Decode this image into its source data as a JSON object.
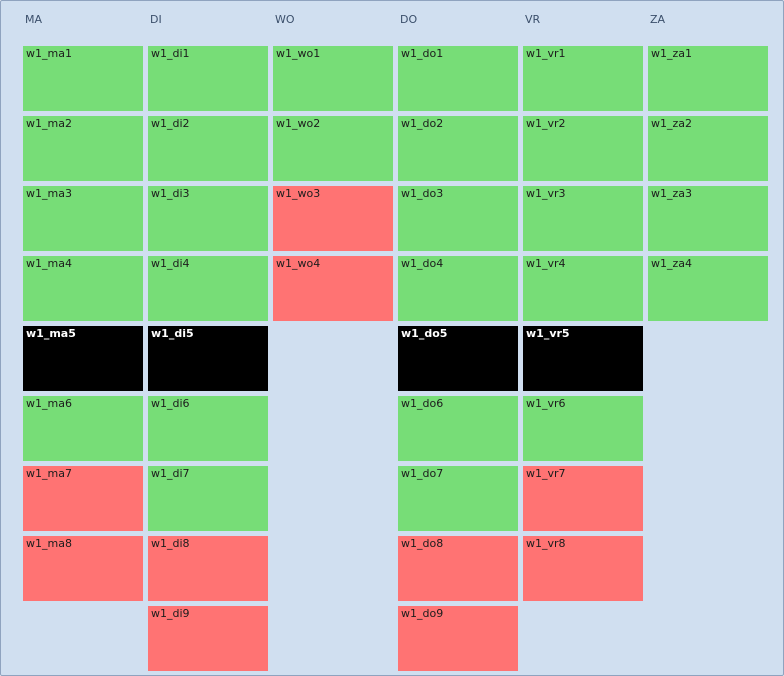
{
  "colors": {
    "green": "#77dd77",
    "red": "#ff7373",
    "black": "#000000"
  },
  "columns": [
    {
      "header": "MA",
      "cells": [
        {
          "label": "w1_ma1",
          "status": "green"
        },
        {
          "label": "w1_ma2",
          "status": "green"
        },
        {
          "label": "w1_ma3",
          "status": "green"
        },
        {
          "label": "w1_ma4",
          "status": "green"
        },
        {
          "label": "w1_ma5",
          "status": "black"
        },
        {
          "label": "w1_ma6",
          "status": "green"
        },
        {
          "label": "w1_ma7",
          "status": "red"
        },
        {
          "label": "w1_ma8",
          "status": "red"
        },
        null
      ]
    },
    {
      "header": "DI",
      "cells": [
        {
          "label": "w1_di1",
          "status": "green"
        },
        {
          "label": "w1_di2",
          "status": "green"
        },
        {
          "label": "w1_di3",
          "status": "green"
        },
        {
          "label": "w1_di4",
          "status": "green"
        },
        {
          "label": "w1_di5",
          "status": "black"
        },
        {
          "label": "w1_di6",
          "status": "green"
        },
        {
          "label": "w1_di7",
          "status": "green"
        },
        {
          "label": "w1_di8",
          "status": "red"
        },
        {
          "label": "w1_di9",
          "status": "red"
        }
      ]
    },
    {
      "header": "WO",
      "cells": [
        {
          "label": "w1_wo1",
          "status": "green"
        },
        {
          "label": "w1_wo2",
          "status": "green"
        },
        {
          "label": "w1_wo3",
          "status": "red"
        },
        {
          "label": "w1_wo4",
          "status": "red"
        },
        null,
        null,
        null,
        null,
        null
      ]
    },
    {
      "header": "DO",
      "cells": [
        {
          "label": "w1_do1",
          "status": "green"
        },
        {
          "label": "w1_do2",
          "status": "green"
        },
        {
          "label": "w1_do3",
          "status": "green"
        },
        {
          "label": "w1_do4",
          "status": "green"
        },
        {
          "label": "w1_do5",
          "status": "black"
        },
        {
          "label": "w1_do6",
          "status": "green"
        },
        {
          "label": "w1_do7",
          "status": "green"
        },
        {
          "label": "w1_do8",
          "status": "red"
        },
        {
          "label": "w1_do9",
          "status": "red"
        }
      ]
    },
    {
      "header": "VR",
      "cells": [
        {
          "label": "w1_vr1",
          "status": "green"
        },
        {
          "label": "w1_vr2",
          "status": "green"
        },
        {
          "label": "w1_vr3",
          "status": "green"
        },
        {
          "label": "w1_vr4",
          "status": "green"
        },
        {
          "label": "w1_vr5",
          "status": "black"
        },
        {
          "label": "w1_vr6",
          "status": "green"
        },
        {
          "label": "w1_vr7",
          "status": "red"
        },
        {
          "label": "w1_vr8",
          "status": "red"
        },
        null
      ]
    },
    {
      "header": "ZA",
      "cells": [
        {
          "label": "w1_za1",
          "status": "green"
        },
        {
          "label": "w1_za2",
          "status": "green"
        },
        {
          "label": "w1_za3",
          "status": "green"
        },
        {
          "label": "w1_za4",
          "status": "green"
        },
        null,
        null,
        null,
        null,
        null
      ]
    }
  ]
}
